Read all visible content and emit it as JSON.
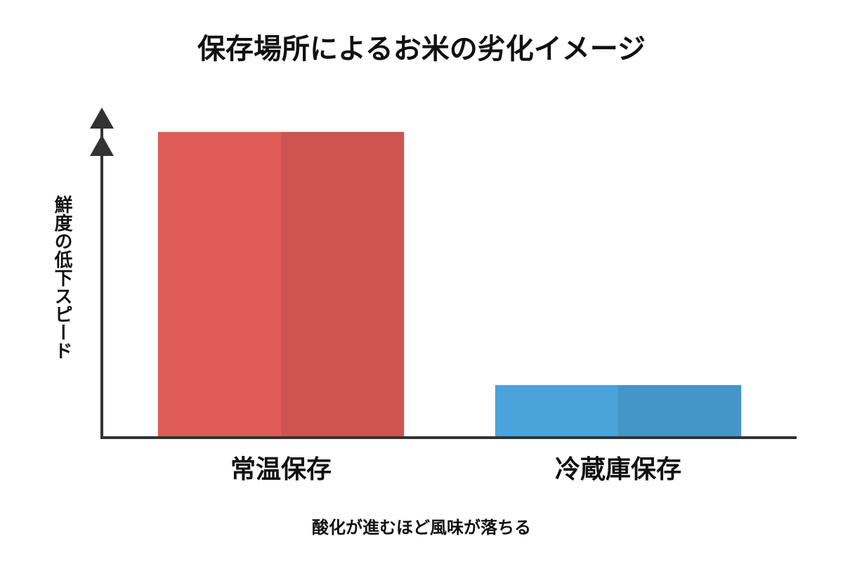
{
  "chart_data": {
    "type": "bar",
    "title": "保存場所によるお米の劣化イメージ",
    "y_label": "鮮度の低下スピード",
    "annotation": "酸化が進むほど風味が落ちる",
    "categories": [
      "常温保存",
      "冷蔵庫保存"
    ],
    "values": [
      93,
      16
    ],
    "colors": [
      "#e05c58",
      "#4aa3da"
    ],
    "ylim": [
      0,
      100
    ]
  }
}
